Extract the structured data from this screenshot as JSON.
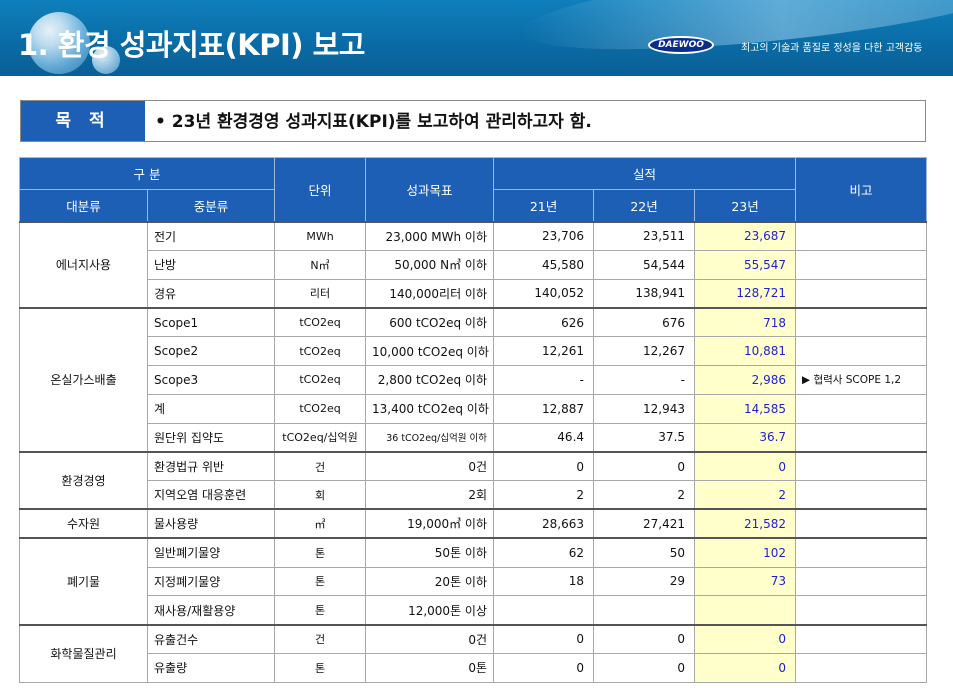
{
  "header": {
    "title": "1. 환경 성과지표(KPI) 보고",
    "logo_text": "DAEWOO",
    "slogan": "최고의 기술과 품질로  정성을 다한 고객감동"
  },
  "purpose": {
    "label": "목 적",
    "text": "•  23년 환경경영 성과지표(KPI)를 보고하여 관리하고자 함."
  },
  "table": {
    "headers": {
      "category": "구 분",
      "major": "대분류",
      "minor": "중분류",
      "unit": "단위",
      "goal": "성과목표",
      "results": "실적",
      "y21": "21년",
      "y22": "22년",
      "y23": "23년",
      "note": "비고"
    },
    "groups": [
      {
        "major": "에너지사용",
        "rows": [
          {
            "minor": "전기",
            "unit": "MWh",
            "goal": "23,000 MWh 이하",
            "y21": "23,706",
            "y22": "23,511",
            "y23": "23,687",
            "note": ""
          },
          {
            "minor": "난방",
            "unit": "N㎥",
            "goal": "50,000 N㎥ 이하",
            "y21": "45,580",
            "y22": "54,544",
            "y23": "55,547",
            "note": ""
          },
          {
            "minor": "경유",
            "unit": "리터",
            "goal": "140,000리터 이하",
            "y21": "140,052",
            "y22": "138,941",
            "y23": "128,721",
            "note": ""
          }
        ]
      },
      {
        "major": "온실가스배출",
        "rows": [
          {
            "minor": "Scope1",
            "unit": "tCO2eq",
            "goal": "600 tCO2eq 이하",
            "y21": "626",
            "y22": "676",
            "y23": "718",
            "note": ""
          },
          {
            "minor": "Scope2",
            "unit": "tCO2eq",
            "goal": "10,000 tCO2eq 이하",
            "y21": "12,261",
            "y22": "12,267",
            "y23": "10,881",
            "note": ""
          },
          {
            "minor": "Scope3",
            "unit": "tCO2eq",
            "goal": "2,800 tCO2eq 이하",
            "y21": "-",
            "y22": "-",
            "y23": "2,986",
            "note": "▶ 협력사 SCOPE 1,2"
          },
          {
            "minor": "계",
            "unit": "tCO2eq",
            "goal": "13,400 tCO2eq 이하",
            "y21": "12,887",
            "y22": "12,943",
            "y23": "14,585",
            "note": ""
          },
          {
            "minor": "원단위 집약도",
            "unit": "tCO2eq/십억원",
            "goal": "36 tCO2eq/십억원 이하",
            "goal_small": true,
            "y21": "46.4",
            "y22": "37.5",
            "y23": "36.7",
            "note": ""
          }
        ]
      },
      {
        "major": "환경경영",
        "rows": [
          {
            "minor": "환경법규 위반",
            "unit": "건",
            "goal": "0건",
            "y21": "0",
            "y22": "0",
            "y23": "0",
            "note": ""
          },
          {
            "minor": "지역오염 대응훈련",
            "unit": "회",
            "goal": "2회",
            "y21": "2",
            "y22": "2",
            "y23": "2",
            "note": ""
          }
        ]
      },
      {
        "major": "수자원",
        "rows": [
          {
            "minor": "물사용량",
            "unit": "㎥",
            "goal": "19,000㎥ 이하",
            "y21": "28,663",
            "y22": "27,421",
            "y23": "21,582",
            "note": ""
          }
        ]
      },
      {
        "major": "폐기물",
        "rows": [
          {
            "minor": "일반폐기물양",
            "unit": "톤",
            "goal": "50톤 이하",
            "y21": "62",
            "y22": "50",
            "y23": "102",
            "note": ""
          },
          {
            "minor": "지정폐기물양",
            "unit": "톤",
            "goal": "20톤 이하",
            "y21": "18",
            "y22": "29",
            "y23": "73",
            "note": ""
          },
          {
            "minor": "재사용/재활용양",
            "unit": "톤",
            "goal": "12,000톤 이상",
            "y21": "",
            "y22": "",
            "y23": "",
            "note": ""
          }
        ]
      },
      {
        "major": "화학물질관리",
        "rows": [
          {
            "minor": "유출건수",
            "unit": "건",
            "goal": "0건",
            "y21": "0",
            "y22": "0",
            "y23": "0",
            "note": ""
          },
          {
            "minor": "유출량",
            "unit": "톤",
            "goal": "0톤",
            "y21": "0",
            "y22": "0",
            "y23": "0",
            "note": ""
          }
        ]
      }
    ]
  }
}
